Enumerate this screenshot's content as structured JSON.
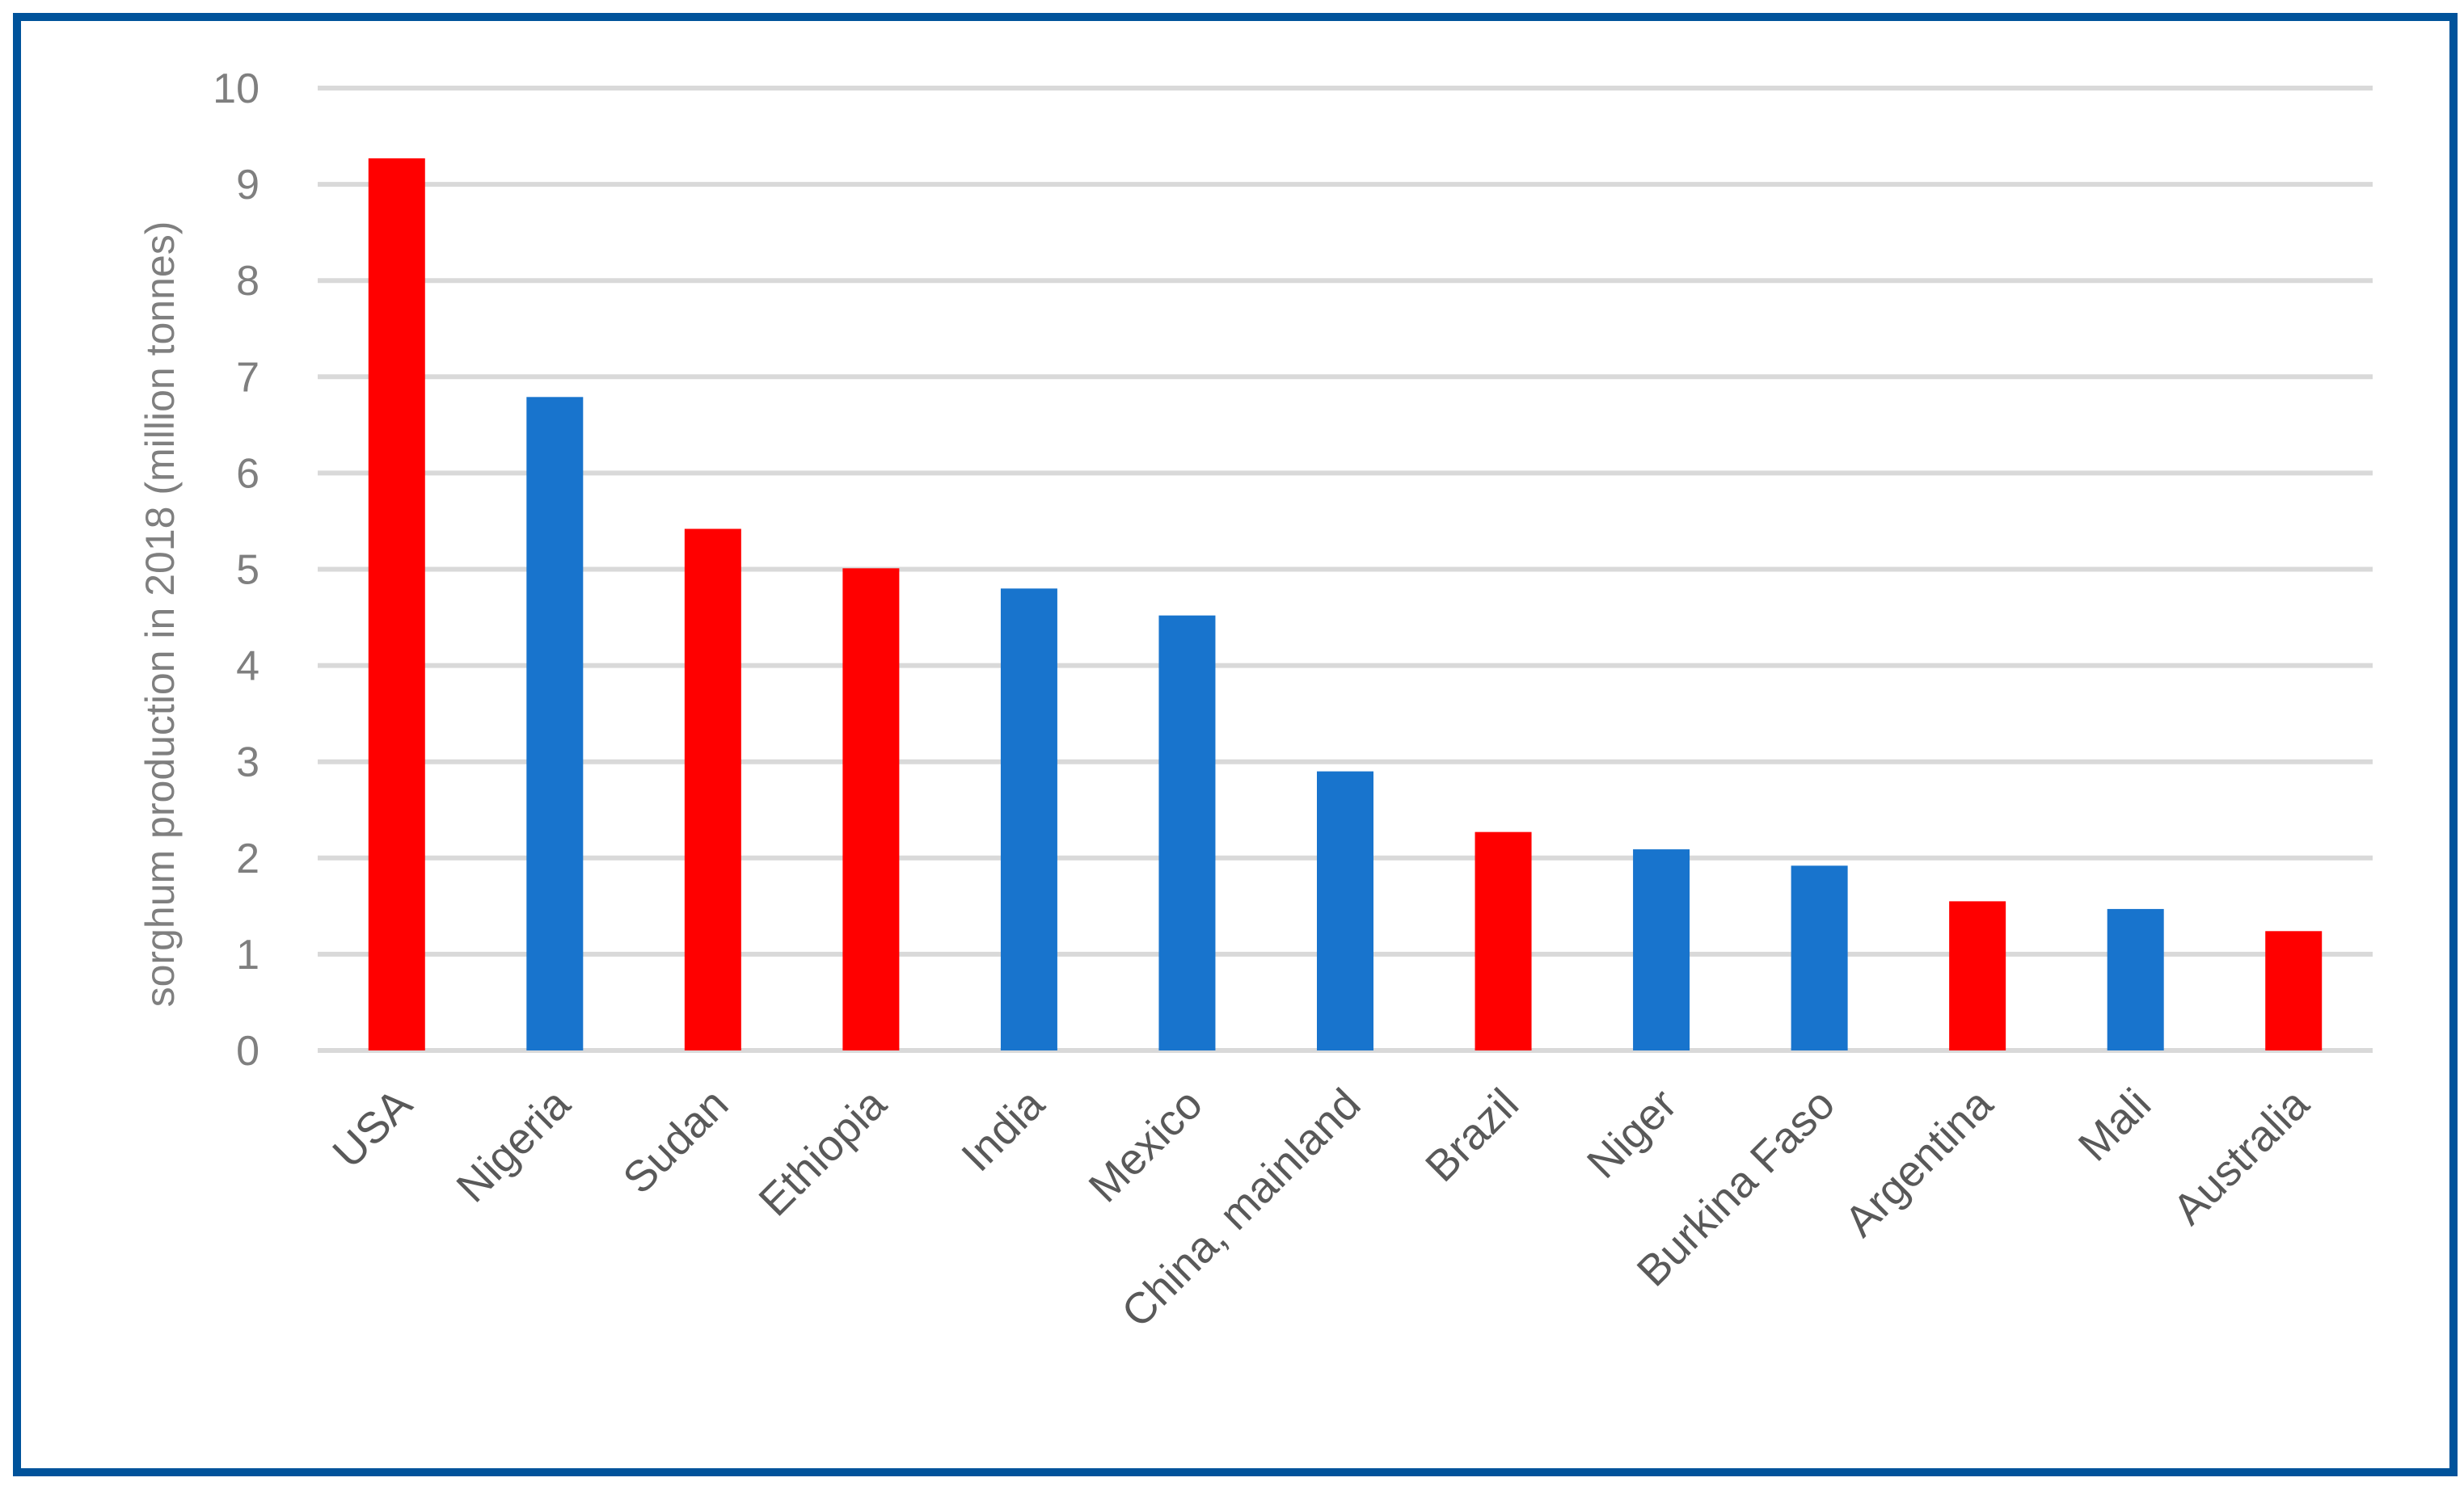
{
  "chart_data": {
    "type": "bar",
    "title": "",
    "xlabel": "",
    "ylabel": "sorghum production in 2018 (million tonnes)",
    "ylim": [
      0,
      10
    ],
    "yticks": [
      0,
      1,
      2,
      3,
      4,
      5,
      6,
      7,
      8,
      9,
      10
    ],
    "grid": true,
    "categories": [
      "USA",
      "Nigeria",
      "Sudan",
      "Ethiopia",
      "India",
      "Mexico",
      "China, mainland",
      "Brazil",
      "Niger",
      "Burkina Faso",
      "Argentina",
      "Mali",
      "Australia"
    ],
    "values": [
      9.27,
      6.79,
      5.42,
      5.01,
      4.8,
      4.52,
      2.9,
      2.27,
      2.09,
      1.92,
      1.55,
      1.47,
      1.24
    ],
    "bar_colors": [
      "#ff0000",
      "#1874cd",
      "#ff0000",
      "#ff0000",
      "#1874cd",
      "#1874cd",
      "#1874cd",
      "#ff0000",
      "#1874cd",
      "#1874cd",
      "#ff0000",
      "#1874cd",
      "#ff0000"
    ],
    "colors": {
      "frame": "#00539b",
      "grid": "#d9d9d9",
      "axis_text": "#7f7f7f",
      "category_text": "#595959"
    }
  }
}
